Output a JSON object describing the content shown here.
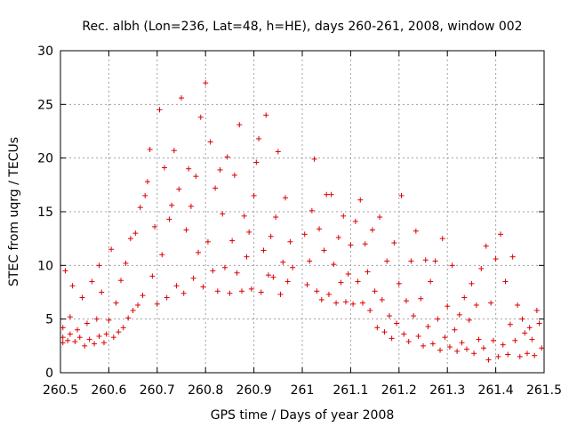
{
  "chart_data": {
    "type": "scatter",
    "title": "Rec. albh (Lon=236, Lat=48, h=HE), days 260-261, 2008, window 002",
    "xlabel": "GPS time / Days of year 2008",
    "ylabel": "STEC from uqrg / TECUs",
    "xlim": [
      260.5,
      261.5
    ],
    "ylim": [
      0,
      30
    ],
    "xticks": [
      260.5,
      260.6,
      260.7,
      260.8,
      260.9,
      261,
      261.1,
      261.2,
      261.3,
      261.4,
      261.5
    ],
    "xtick_labels": [
      "260.5",
      "260.6",
      "260.7",
      "260.8",
      "260.9",
      "261",
      "261.1",
      "261.2",
      "261.3",
      "261.4",
      "261.5"
    ],
    "yticks": [
      0,
      5,
      10,
      15,
      20,
      25,
      30
    ],
    "ytick_labels": [
      "0",
      "5",
      "10",
      "15",
      "20",
      "25",
      "30"
    ],
    "grid": true,
    "marker": "+",
    "color": "#dd0000",
    "points": [
      [
        260.505,
        2.8
      ],
      [
        260.505,
        3.3
      ],
      [
        260.505,
        4.2
      ],
      [
        260.51,
        9.5
      ],
      [
        260.515,
        3.0
      ],
      [
        260.52,
        3.6
      ],
      [
        260.52,
        5.2
      ],
      [
        260.525,
        8.1
      ],
      [
        260.53,
        2.9
      ],
      [
        260.535,
        4.0
      ],
      [
        260.54,
        3.3
      ],
      [
        260.545,
        7.0
      ],
      [
        260.55,
        2.5
      ],
      [
        260.555,
        4.6
      ],
      [
        260.56,
        3.1
      ],
      [
        260.565,
        8.5
      ],
      [
        260.57,
        2.7
      ],
      [
        260.575,
        5.0
      ],
      [
        260.58,
        3.4
      ],
      [
        260.58,
        10.0
      ],
      [
        260.585,
        7.5
      ],
      [
        260.59,
        2.8
      ],
      [
        260.595,
        3.6
      ],
      [
        260.6,
        4.9
      ],
      [
        260.605,
        11.5
      ],
      [
        260.61,
        3.3
      ],
      [
        260.615,
        6.5
      ],
      [
        260.62,
        3.8
      ],
      [
        260.625,
        8.6
      ],
      [
        260.63,
        4.2
      ],
      [
        260.635,
        10.2
      ],
      [
        260.64,
        5.1
      ],
      [
        260.645,
        12.5
      ],
      [
        260.65,
        5.8
      ],
      [
        260.655,
        13.0
      ],
      [
        260.66,
        6.3
      ],
      [
        260.665,
        15.4
      ],
      [
        260.67,
        7.2
      ],
      [
        260.675,
        16.5
      ],
      [
        260.68,
        17.8
      ],
      [
        260.685,
        20.8
      ],
      [
        260.69,
        9.0
      ],
      [
        260.695,
        13.6
      ],
      [
        260.7,
        6.4
      ],
      [
        260.705,
        24.5
      ],
      [
        260.71,
        11.0
      ],
      [
        260.715,
        19.1
      ],
      [
        260.72,
        7.0
      ],
      [
        260.725,
        14.3
      ],
      [
        260.73,
        15.6
      ],
      [
        260.735,
        20.7
      ],
      [
        260.74,
        8.1
      ],
      [
        260.745,
        17.1
      ],
      [
        260.75,
        25.6
      ],
      [
        260.755,
        7.4
      ],
      [
        260.76,
        13.3
      ],
      [
        260.765,
        19.0
      ],
      [
        260.77,
        15.5
      ],
      [
        260.775,
        8.8
      ],
      [
        260.78,
        18.3
      ],
      [
        260.785,
        11.2
      ],
      [
        260.79,
        23.8
      ],
      [
        260.795,
        8.0
      ],
      [
        260.8,
        27.0
      ],
      [
        260.805,
        12.2
      ],
      [
        260.81,
        21.5
      ],
      [
        260.815,
        9.5
      ],
      [
        260.82,
        17.2
      ],
      [
        260.825,
        7.6
      ],
      [
        260.83,
        18.9
      ],
      [
        260.835,
        14.8
      ],
      [
        260.84,
        9.8
      ],
      [
        260.845,
        20.1
      ],
      [
        260.85,
        7.4
      ],
      [
        260.855,
        12.3
      ],
      [
        260.86,
        18.4
      ],
      [
        260.865,
        9.3
      ],
      [
        260.87,
        23.1
      ],
      [
        260.875,
        7.6
      ],
      [
        260.88,
        14.6
      ],
      [
        260.885,
        10.8
      ],
      [
        260.89,
        13.1
      ],
      [
        260.895,
        7.8
      ],
      [
        260.9,
        16.5
      ],
      [
        260.905,
        19.6
      ],
      [
        260.91,
        21.8
      ],
      [
        260.915,
        7.5
      ],
      [
        260.92,
        11.4
      ],
      [
        260.925,
        24.0
      ],
      [
        260.93,
        9.1
      ],
      [
        260.935,
        12.7
      ],
      [
        260.94,
        8.9
      ],
      [
        260.945,
        14.5
      ],
      [
        260.95,
        20.6
      ],
      [
        260.955,
        7.3
      ],
      [
        260.96,
        10.3
      ],
      [
        260.965,
        16.3
      ],
      [
        260.97,
        8.5
      ],
      [
        260.975,
        12.2
      ],
      [
        260.98,
        9.8
      ],
      [
        261.005,
        12.9
      ],
      [
        261.01,
        8.2
      ],
      [
        261.015,
        10.4
      ],
      [
        261.02,
        15.1
      ],
      [
        261.025,
        19.9
      ],
      [
        261.03,
        7.6
      ],
      [
        261.035,
        13.4
      ],
      [
        261.04,
        6.8
      ],
      [
        261.045,
        11.4
      ],
      [
        261.05,
        16.6
      ],
      [
        261.055,
        7.3
      ],
      [
        261.06,
        16.6
      ],
      [
        261.065,
        10.1
      ],
      [
        261.07,
        6.5
      ],
      [
        261.075,
        12.6
      ],
      [
        261.08,
        8.4
      ],
      [
        261.085,
        14.6
      ],
      [
        261.09,
        6.6
      ],
      [
        261.095,
        9.2
      ],
      [
        261.1,
        11.9
      ],
      [
        261.105,
        6.4
      ],
      [
        261.11,
        14.1
      ],
      [
        261.115,
        8.5
      ],
      [
        261.12,
        16.1
      ],
      [
        261.125,
        6.5
      ],
      [
        261.13,
        12.0
      ],
      [
        261.135,
        9.4
      ],
      [
        261.14,
        5.8
      ],
      [
        261.145,
        13.3
      ],
      [
        261.15,
        7.6
      ],
      [
        261.155,
        4.2
      ],
      [
        261.16,
        14.5
      ],
      [
        261.165,
        6.8
      ],
      [
        261.17,
        3.8
      ],
      [
        261.175,
        10.4
      ],
      [
        261.18,
        5.3
      ],
      [
        261.185,
        3.2
      ],
      [
        261.19,
        12.1
      ],
      [
        261.195,
        4.6
      ],
      [
        261.2,
        8.3
      ],
      [
        261.205,
        16.5
      ],
      [
        261.21,
        3.6
      ],
      [
        261.215,
        6.7
      ],
      [
        261.22,
        2.9
      ],
      [
        261.225,
        10.4
      ],
      [
        261.23,
        5.3
      ],
      [
        261.235,
        13.2
      ],
      [
        261.24,
        3.4
      ],
      [
        261.245,
        6.9
      ],
      [
        261.25,
        2.5
      ],
      [
        261.255,
        10.5
      ],
      [
        261.26,
        4.3
      ],
      [
        261.265,
        8.5
      ],
      [
        261.27,
        2.7
      ],
      [
        261.275,
        10.4
      ],
      [
        261.28,
        5.0
      ],
      [
        261.285,
        2.1
      ],
      [
        261.29,
        12.5
      ],
      [
        261.295,
        3.3
      ],
      [
        261.3,
        6.2
      ],
      [
        261.305,
        2.4
      ],
      [
        261.31,
        10.0
      ],
      [
        261.315,
        4.0
      ],
      [
        261.32,
        2.0
      ],
      [
        261.325,
        5.4
      ],
      [
        261.33,
        2.8
      ],
      [
        261.335,
        7.0
      ],
      [
        261.34,
        2.2
      ],
      [
        261.345,
        4.9
      ],
      [
        261.35,
        8.3
      ],
      [
        261.355,
        1.8
      ],
      [
        261.36,
        6.3
      ],
      [
        261.365,
        3.1
      ],
      [
        261.37,
        9.7
      ],
      [
        261.375,
        2.3
      ],
      [
        261.38,
        11.8
      ],
      [
        261.385,
        1.2
      ],
      [
        261.39,
        6.5
      ],
      [
        261.395,
        3.0
      ],
      [
        261.4,
        10.6
      ],
      [
        261.405,
        1.5
      ],
      [
        261.41,
        12.9
      ],
      [
        261.415,
        2.6
      ],
      [
        261.42,
        8.5
      ],
      [
        261.425,
        1.7
      ],
      [
        261.43,
        4.5
      ],
      [
        261.435,
        10.8
      ],
      [
        261.44,
        3.0
      ],
      [
        261.445,
        6.3
      ],
      [
        261.45,
        1.5
      ],
      [
        261.455,
        5.0
      ],
      [
        261.46,
        3.7
      ],
      [
        261.465,
        1.8
      ],
      [
        261.47,
        4.2
      ],
      [
        261.475,
        3.1
      ],
      [
        261.48,
        1.6
      ],
      [
        261.485,
        5.8
      ],
      [
        261.49,
        4.6
      ],
      [
        261.495,
        2.3
      ]
    ]
  }
}
